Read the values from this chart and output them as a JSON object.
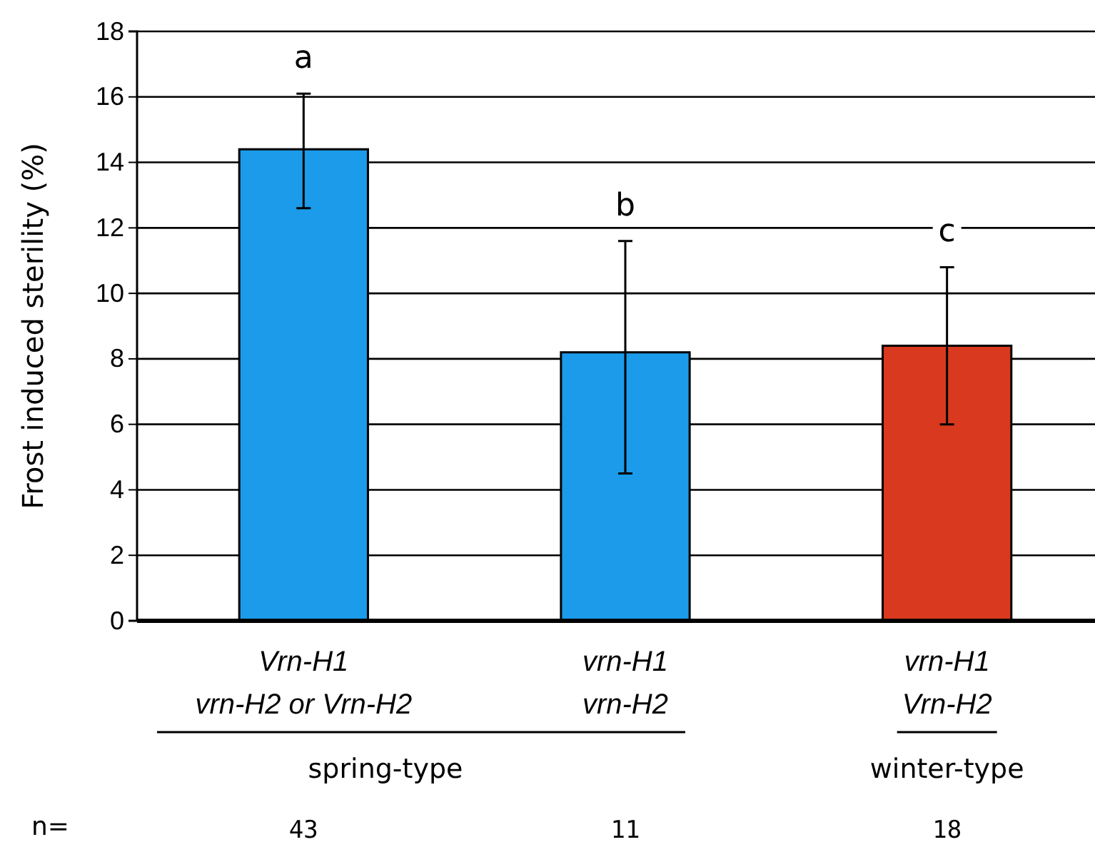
{
  "chart_data": {
    "type": "bar",
    "ylabel": "Frost induced sterility (%)",
    "categories": [
      "Vrn-H1\nvrn-H2 or Vrn-H2",
      "vrn-H1\nvrn-H2",
      "vrn-H1\nVrn-H2"
    ],
    "values": [
      14.4,
      8.2,
      8.4
    ],
    "colors": [
      "#1b9be9",
      "#1b9be9",
      "#d9391e"
    ],
    "errors": [
      [
        12.6,
        16.1
      ],
      [
        4.5,
        11.6
      ],
      [
        6.0,
        10.8
      ]
    ],
    "ylim": [
      0,
      18
    ],
    "yticks": [
      0,
      2,
      4,
      6,
      8,
      10,
      12,
      14,
      16,
      18
    ],
    "grid": "y",
    "annotations": [
      "a",
      "b",
      "c",
      "spring-type",
      "winter-type",
      "n=",
      "43",
      "11",
      "18"
    ]
  }
}
